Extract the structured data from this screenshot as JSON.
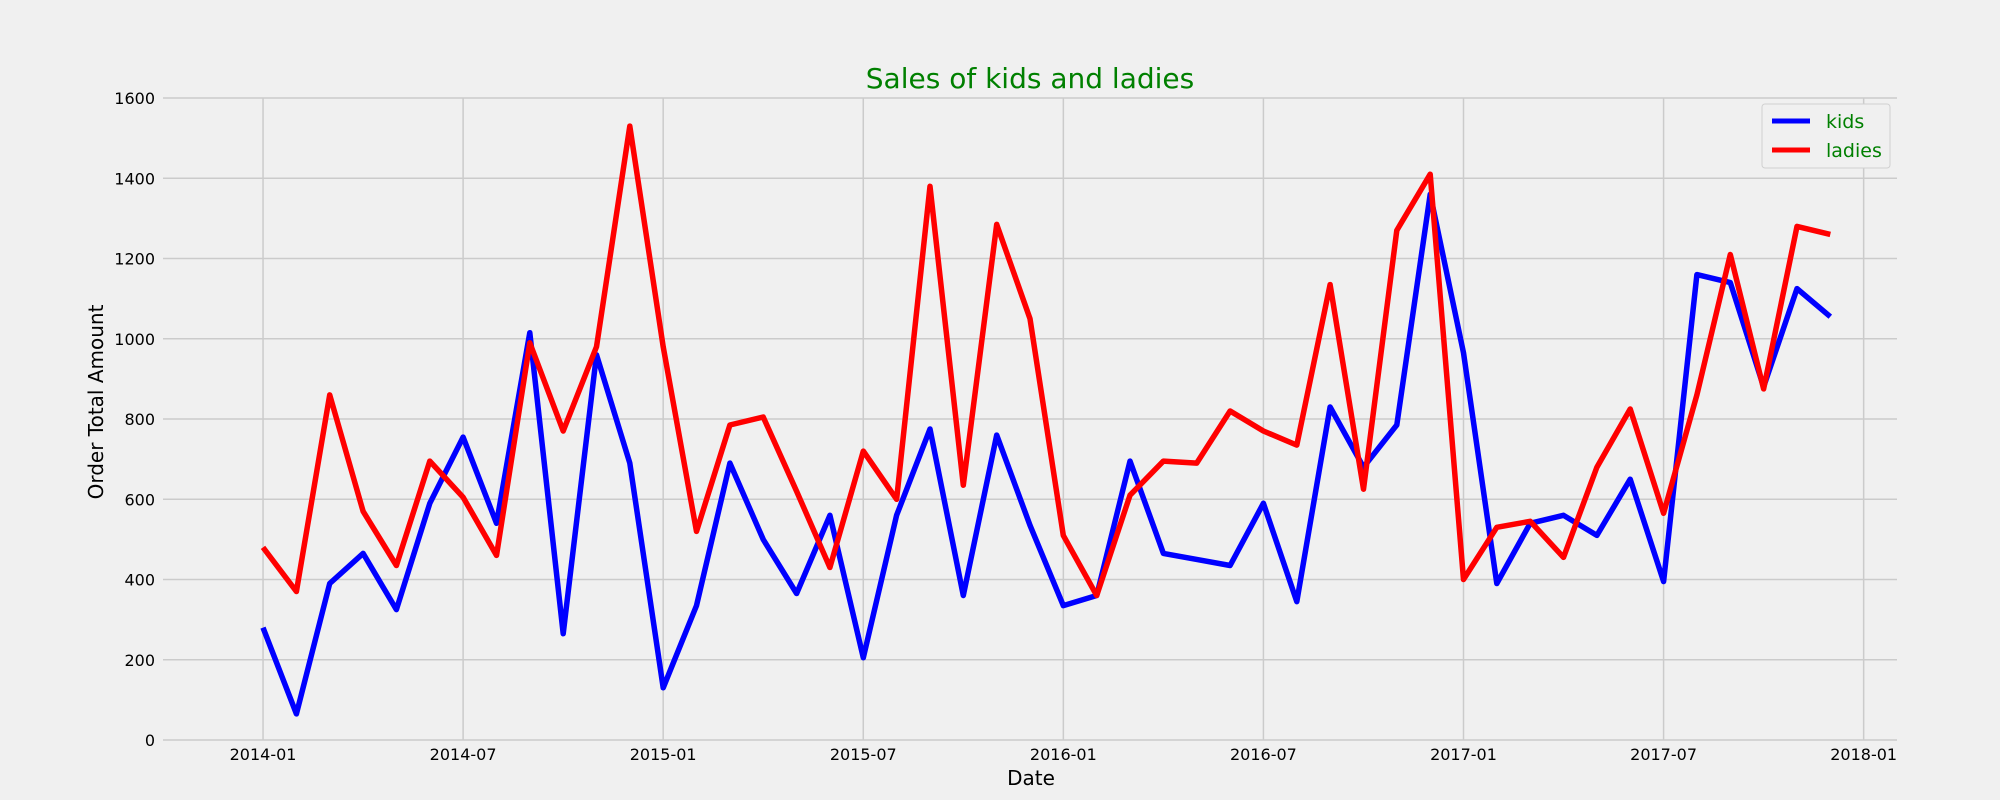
{
  "chart_data": {
    "type": "line",
    "title": "Sales of kids and ladies",
    "xlabel": "Date",
    "ylabel": "Order Total Amount",
    "ylim": [
      0,
      1600
    ],
    "yticks": [
      0,
      200,
      400,
      600,
      800,
      1000,
      1200,
      1400,
      1600
    ],
    "xticks": [
      "2014-01",
      "2014-07",
      "2015-01",
      "2015-07",
      "2016-01",
      "2016-07",
      "2017-01",
      "2017-07",
      "2018-01"
    ],
    "xlim": [
      "2013-10",
      "2018-02"
    ],
    "grid": true,
    "legend_position": "top-right",
    "title_color": "#008000",
    "legend_text_color": "#008000",
    "x": [
      "2014-01",
      "2014-02",
      "2014-03",
      "2014-04",
      "2014-05",
      "2014-06",
      "2014-07",
      "2014-08",
      "2014-09",
      "2014-10",
      "2014-11",
      "2014-12",
      "2015-01",
      "2015-02",
      "2015-03",
      "2015-04",
      "2015-05",
      "2015-06",
      "2015-07",
      "2015-08",
      "2015-09",
      "2015-10",
      "2015-11",
      "2015-12",
      "2016-01",
      "2016-02",
      "2016-03",
      "2016-04",
      "2016-05",
      "2016-06",
      "2016-07",
      "2016-08",
      "2016-09",
      "2016-10",
      "2016-11",
      "2016-12",
      "2017-01",
      "2017-02",
      "2017-03",
      "2017-04",
      "2017-05",
      "2017-06",
      "2017-07",
      "2017-08",
      "2017-09",
      "2017-10",
      "2017-11",
      "2017-12"
    ],
    "series": [
      {
        "name": "kids",
        "color": "#0000ff",
        "values": [
          280,
          65,
          390,
          465,
          325,
          590,
          755,
          540,
          1015,
          265,
          960,
          690,
          130,
          335,
          690,
          500,
          365,
          560,
          205,
          560,
          775,
          360,
          760,
          535,
          335,
          360,
          695,
          465,
          450,
          435,
          590,
          345,
          830,
          680,
          785,
          1360,
          965,
          390,
          540,
          560,
          510,
          650,
          395,
          1160,
          1140,
          880,
          1125,
          1055
        ]
      },
      {
        "name": "ladies",
        "color": "#ff0000",
        "values": [
          480,
          370,
          860,
          570,
          435,
          695,
          605,
          460,
          990,
          770,
          980,
          1530,
          980,
          520,
          785,
          805,
          620,
          430,
          720,
          600,
          1380,
          635,
          1285,
          1050,
          510,
          360,
          610,
          695,
          690,
          820,
          770,
          735,
          1135,
          625,
          1270,
          1410,
          400,
          530,
          545,
          455,
          680,
          825,
          565,
          860,
          1210,
          875,
          1280,
          1260
        ]
      }
    ]
  }
}
